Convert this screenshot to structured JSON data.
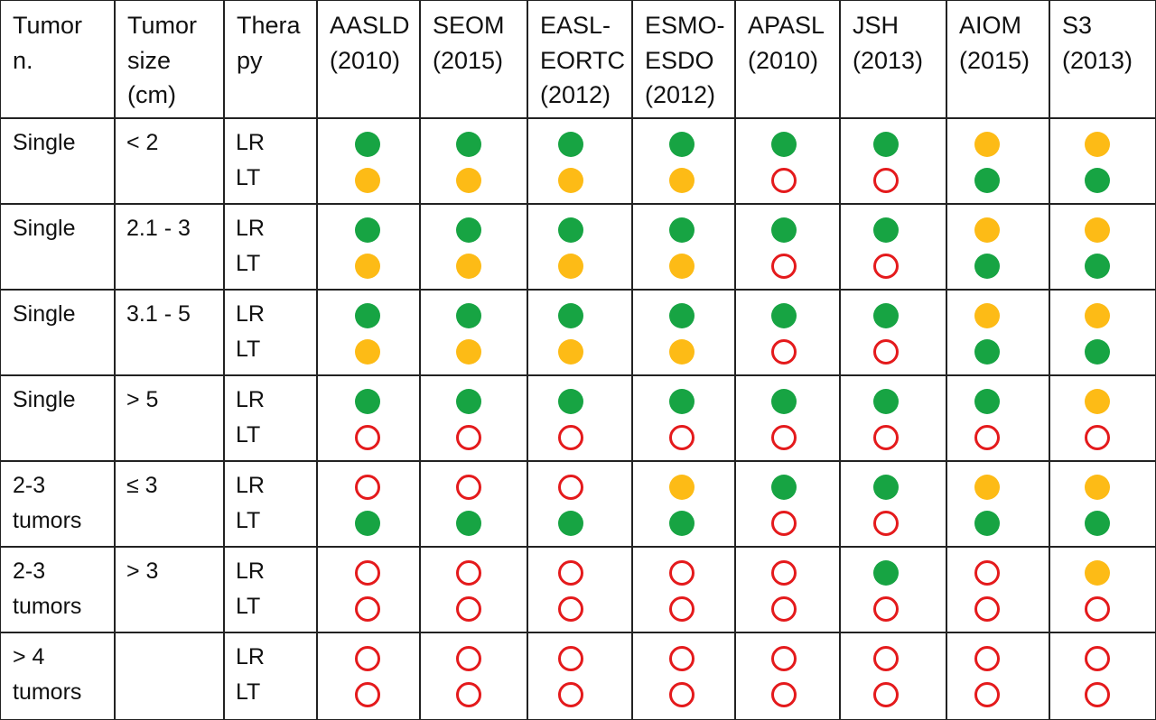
{
  "colors": {
    "green": "#17a443",
    "yellow": "#fdbb16",
    "red_outline": "#e41a1c",
    "grid": "#222222"
  },
  "headers": [
    "Tumor\nn.",
    "Tumor\nsize\n(cm)",
    "Thera\npy",
    "AASLD\n(2010)",
    "SEOM\n(2015)",
    "EASL-\nEORTC\n(2012)",
    "ESMO-\nESDO\n(2012)",
    "APASL\n(2010)",
    "JSH\n(2013)",
    "AIOM\n(2015)",
    "S3\n(2013)"
  ],
  "rows": [
    {
      "tumor_n": "Single",
      "size": "< 2",
      "therapies": [
        "LR",
        "LT"
      ],
      "marks": [
        [
          "green",
          "green",
          "green",
          "green",
          "green",
          "green",
          "yellow",
          "yellow"
        ],
        [
          "yellow",
          "yellow",
          "yellow",
          "yellow",
          "empty",
          "empty",
          "green",
          "green"
        ]
      ]
    },
    {
      "tumor_n": "Single",
      "size": "2.1 - 3",
      "therapies": [
        "LR",
        "LT"
      ],
      "marks": [
        [
          "green",
          "green",
          "green",
          "green",
          "green",
          "green",
          "yellow",
          "yellow"
        ],
        [
          "yellow",
          "yellow",
          "yellow",
          "yellow",
          "empty",
          "empty",
          "green",
          "green"
        ]
      ]
    },
    {
      "tumor_n": "Single",
      "size": "3.1 - 5",
      "therapies": [
        "LR",
        "LT"
      ],
      "marks": [
        [
          "green",
          "green",
          "green",
          "green",
          "green",
          "green",
          "yellow",
          "yellow"
        ],
        [
          "yellow",
          "yellow",
          "yellow",
          "yellow",
          "empty",
          "empty",
          "green",
          "green"
        ]
      ]
    },
    {
      "tumor_n": "Single",
      "size": "> 5",
      "therapies": [
        "LR",
        "LT"
      ],
      "marks": [
        [
          "green",
          "green",
          "green",
          "green",
          "green",
          "green",
          "green",
          "yellow"
        ],
        [
          "empty",
          "empty",
          "empty",
          "empty",
          "empty",
          "empty",
          "empty",
          "empty"
        ]
      ]
    },
    {
      "tumor_n": "2-3\ntumors",
      "size": "≤ 3",
      "therapies": [
        "LR",
        "LT"
      ],
      "marks": [
        [
          "empty",
          "empty",
          "empty",
          "yellow",
          "green",
          "green",
          "yellow",
          "yellow"
        ],
        [
          "green",
          "green",
          "green",
          "green",
          "empty",
          "empty",
          "green",
          "green"
        ]
      ]
    },
    {
      "tumor_n": "2-3\ntumors",
      "size": "> 3",
      "therapies": [
        "LR",
        "LT"
      ],
      "marks": [
        [
          "empty",
          "empty",
          "empty",
          "empty",
          "empty",
          "green",
          "empty",
          "yellow"
        ],
        [
          "empty",
          "empty",
          "empty",
          "empty",
          "empty",
          "empty",
          "empty",
          "empty"
        ]
      ]
    },
    {
      "tumor_n": "> 4\ntumors",
      "size": "",
      "therapies": [
        "LR",
        "LT"
      ],
      "marks": [
        [
          "empty",
          "empty",
          "empty",
          "empty",
          "empty",
          "empty",
          "empty",
          "empty"
        ],
        [
          "empty",
          "empty",
          "empty",
          "empty",
          "empty",
          "empty",
          "empty",
          "empty"
        ]
      ]
    }
  ]
}
